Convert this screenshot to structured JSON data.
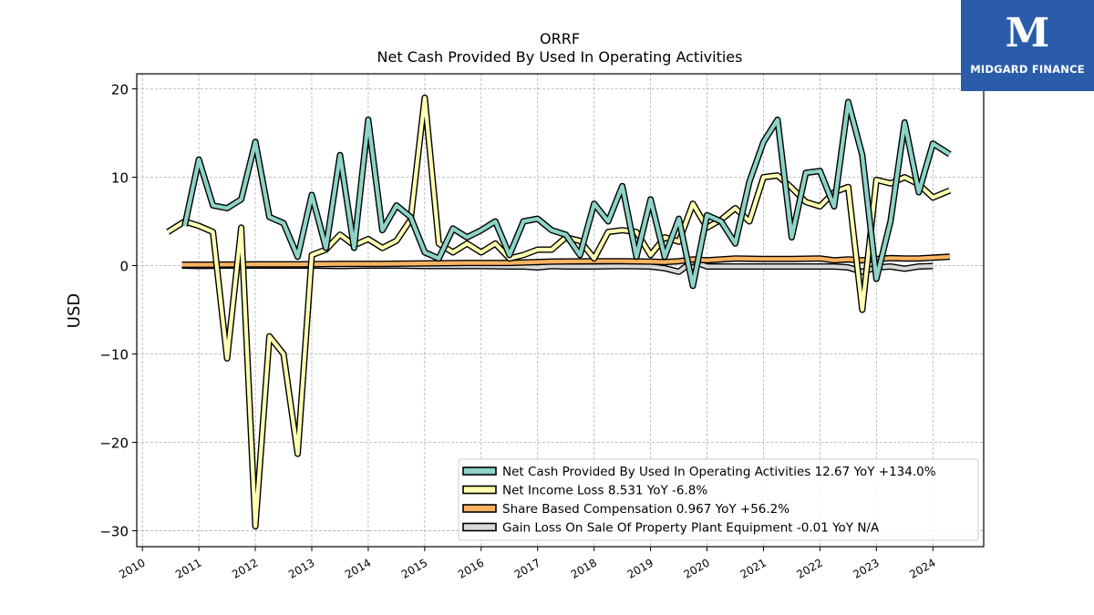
{
  "brand": {
    "name": "MIDGARD FINANCE",
    "logo_glyph": "M",
    "background": "#2a5caa"
  },
  "chart_data": {
    "type": "line",
    "title": "ORRF",
    "subtitle": "Net Cash Provided By Used In Operating Activities",
    "ylabel": "USD",
    "xlim": [
      2009.9,
      2024.9
    ],
    "ylim": [
      -31.8,
      21.7
    ],
    "xticks": [
      2010,
      2011,
      2012,
      2013,
      2014,
      2015,
      2016,
      2017,
      2018,
      2019,
      2020,
      2021,
      2022,
      2023,
      2024
    ],
    "yticks": [
      20,
      10,
      0,
      -10,
      -20,
      -30
    ],
    "grid": true,
    "legend_position": "lower right",
    "series": [
      {
        "name": "Net Cash Provided By Used In Operating Activities",
        "legend_label": "Net Cash Provided By Used In Operating Activities  12.67 YoY +134.0%",
        "color": "#8dd3c7",
        "points": [
          [
            2010.75,
            4.5
          ],
          [
            2011.0,
            12.0
          ],
          [
            2011.25,
            6.8
          ],
          [
            2011.5,
            6.5
          ],
          [
            2011.75,
            7.5
          ],
          [
            2012.0,
            14.0
          ],
          [
            2012.25,
            5.5
          ],
          [
            2012.5,
            4.8
          ],
          [
            2012.75,
            1.0
          ],
          [
            2013.0,
            8.0
          ],
          [
            2013.25,
            2.0
          ],
          [
            2013.5,
            12.5
          ],
          [
            2013.75,
            2.0
          ],
          [
            2014.0,
            16.5
          ],
          [
            2014.25,
            4.0
          ],
          [
            2014.5,
            6.8
          ],
          [
            2014.75,
            5.5
          ],
          [
            2015.0,
            1.5
          ],
          [
            2015.25,
            0.8
          ],
          [
            2015.5,
            4.2
          ],
          [
            2015.75,
            3.2
          ],
          [
            2016.0,
            4.0
          ],
          [
            2016.25,
            5.0
          ],
          [
            2016.5,
            1.2
          ],
          [
            2016.75,
            5.0
          ],
          [
            2017.0,
            5.3
          ],
          [
            2017.25,
            4.0
          ],
          [
            2017.5,
            3.5
          ],
          [
            2017.75,
            1.2
          ],
          [
            2018.0,
            7.0
          ],
          [
            2018.25,
            5.0
          ],
          [
            2018.5,
            9.0
          ],
          [
            2018.75,
            1.0
          ],
          [
            2019.0,
            7.5
          ],
          [
            2019.25,
            1.0
          ],
          [
            2019.5,
            5.3
          ],
          [
            2019.75,
            -2.3
          ],
          [
            2020.0,
            5.7
          ],
          [
            2020.25,
            5.0
          ],
          [
            2020.5,
            2.5
          ],
          [
            2020.75,
            9.5
          ],
          [
            2021.0,
            14.0
          ],
          [
            2021.25,
            16.5
          ],
          [
            2021.5,
            3.2
          ],
          [
            2021.75,
            10.5
          ],
          [
            2022.0,
            10.7
          ],
          [
            2022.25,
            6.7
          ],
          [
            2022.5,
            18.5
          ],
          [
            2022.75,
            12.5
          ],
          [
            2023.0,
            -1.5
          ],
          [
            2023.25,
            5.0
          ],
          [
            2023.5,
            16.2
          ],
          [
            2023.75,
            8.3
          ],
          [
            2024.0,
            13.8
          ],
          [
            2024.3,
            12.6
          ]
        ]
      },
      {
        "name": "Net Income Loss",
        "legend_label": "Net Income Loss  8.531 YoY -6.8%",
        "color": "#ffffb3",
        "points": [
          [
            2010.45,
            3.8
          ],
          [
            2010.75,
            5.0
          ],
          [
            2011.0,
            4.5
          ],
          [
            2011.25,
            3.8
          ],
          [
            2011.5,
            -10.5
          ],
          [
            2011.75,
            4.3
          ],
          [
            2012.0,
            -29.5
          ],
          [
            2012.25,
            -8.0
          ],
          [
            2012.5,
            -10.0
          ],
          [
            2012.75,
            -21.3
          ],
          [
            2013.0,
            1.2
          ],
          [
            2013.25,
            1.8
          ],
          [
            2013.5,
            3.5
          ],
          [
            2013.75,
            2.3
          ],
          [
            2014.0,
            3.0
          ],
          [
            2014.25,
            2.0
          ],
          [
            2014.5,
            2.8
          ],
          [
            2014.75,
            5.2
          ],
          [
            2015.0,
            19.0
          ],
          [
            2015.25,
            2.5
          ],
          [
            2015.5,
            1.5
          ],
          [
            2015.75,
            2.5
          ],
          [
            2016.0,
            1.5
          ],
          [
            2016.25,
            2.5
          ],
          [
            2016.5,
            0.8
          ],
          [
            2016.75,
            1.2
          ],
          [
            2017.0,
            1.8
          ],
          [
            2017.25,
            1.8
          ],
          [
            2017.5,
            3.2
          ],
          [
            2017.75,
            2.8
          ],
          [
            2018.0,
            0.8
          ],
          [
            2018.25,
            3.8
          ],
          [
            2018.5,
            4.0
          ],
          [
            2018.75,
            3.8
          ],
          [
            2019.0,
            1.2
          ],
          [
            2019.25,
            3.2
          ],
          [
            2019.5,
            2.7
          ],
          [
            2019.75,
            7.0
          ],
          [
            2020.0,
            4.3
          ],
          [
            2020.25,
            5.2
          ],
          [
            2020.5,
            6.5
          ],
          [
            2020.75,
            5.0
          ],
          [
            2021.0,
            10.0
          ],
          [
            2021.25,
            10.2
          ],
          [
            2021.5,
            8.8
          ],
          [
            2021.75,
            7.2
          ],
          [
            2022.0,
            6.7
          ],
          [
            2022.25,
            8.3
          ],
          [
            2022.5,
            8.9
          ],
          [
            2022.75,
            -5.0
          ],
          [
            2023.0,
            9.7
          ],
          [
            2023.25,
            9.3
          ],
          [
            2023.5,
            10.0
          ],
          [
            2023.75,
            9.2
          ],
          [
            2024.0,
            7.7
          ],
          [
            2024.3,
            8.5
          ]
        ]
      },
      {
        "name": "Share Based Compensation",
        "legend_label": "Share Based Compensation  0.967 YoY +56.2%",
        "color": "#fdb462",
        "points": [
          [
            2010.7,
            0.1
          ],
          [
            2011.25,
            0.1
          ],
          [
            2012.0,
            0.15
          ],
          [
            2012.75,
            0.15
          ],
          [
            2013.5,
            0.2
          ],
          [
            2014.25,
            0.2
          ],
          [
            2015.0,
            0.25
          ],
          [
            2015.75,
            0.3
          ],
          [
            2016.5,
            0.3
          ],
          [
            2017.25,
            0.45
          ],
          [
            2018.0,
            0.5
          ],
          [
            2018.5,
            0.5
          ],
          [
            2019.0,
            0.45
          ],
          [
            2019.25,
            0.4
          ],
          [
            2019.5,
            0.5
          ],
          [
            2019.75,
            0.7
          ],
          [
            2020.0,
            0.6
          ],
          [
            2020.5,
            0.8
          ],
          [
            2021.0,
            0.75
          ],
          [
            2021.5,
            0.75
          ],
          [
            2022.0,
            0.8
          ],
          [
            2022.25,
            0.6
          ],
          [
            2022.5,
            0.7
          ],
          [
            2022.75,
            0.6
          ],
          [
            2023.0,
            0.75
          ],
          [
            2023.25,
            0.85
          ],
          [
            2023.5,
            0.8
          ],
          [
            2023.75,
            0.8
          ],
          [
            2024.0,
            0.9
          ],
          [
            2024.3,
            1.0
          ]
        ]
      },
      {
        "name": "Gain Loss On Sale Of Property Plant Equipment",
        "legend_label": "Gain Loss On Sale Of Property Plant Equipment  -0.01 YoY N/A",
        "color": "#d9d9d9",
        "points": [
          [
            2010.7,
            0.0
          ],
          [
            2011.0,
            -0.05
          ],
          [
            2011.5,
            0.0
          ],
          [
            2012.0,
            0.0
          ],
          [
            2012.5,
            0.0
          ],
          [
            2013.0,
            0.0
          ],
          [
            2013.5,
            -0.05
          ],
          [
            2014.0,
            0.0
          ],
          [
            2014.5,
            0.0
          ],
          [
            2015.0,
            -0.05
          ],
          [
            2015.5,
            -0.05
          ],
          [
            2016.0,
            -0.05
          ],
          [
            2016.5,
            -0.1
          ],
          [
            2016.75,
            -0.1
          ],
          [
            2017.0,
            -0.2
          ],
          [
            2017.25,
            -0.05
          ],
          [
            2017.5,
            -0.1
          ],
          [
            2018.0,
            -0.1
          ],
          [
            2018.5,
            -0.05
          ],
          [
            2019.0,
            -0.1
          ],
          [
            2019.25,
            -0.3
          ],
          [
            2019.5,
            -0.7
          ],
          [
            2019.75,
            0.5
          ],
          [
            2020.0,
            -0.1
          ],
          [
            2020.5,
            -0.1
          ],
          [
            2021.0,
            -0.1
          ],
          [
            2021.5,
            -0.1
          ],
          [
            2022.0,
            -0.1
          ],
          [
            2022.25,
            -0.1
          ],
          [
            2022.5,
            -0.2
          ],
          [
            2022.75,
            -0.7
          ],
          [
            2023.0,
            -0.2
          ],
          [
            2023.25,
            -0.1
          ],
          [
            2023.5,
            -0.35
          ],
          [
            2023.75,
            -0.1
          ],
          [
            2024.0,
            -0.05
          ]
        ]
      }
    ]
  }
}
